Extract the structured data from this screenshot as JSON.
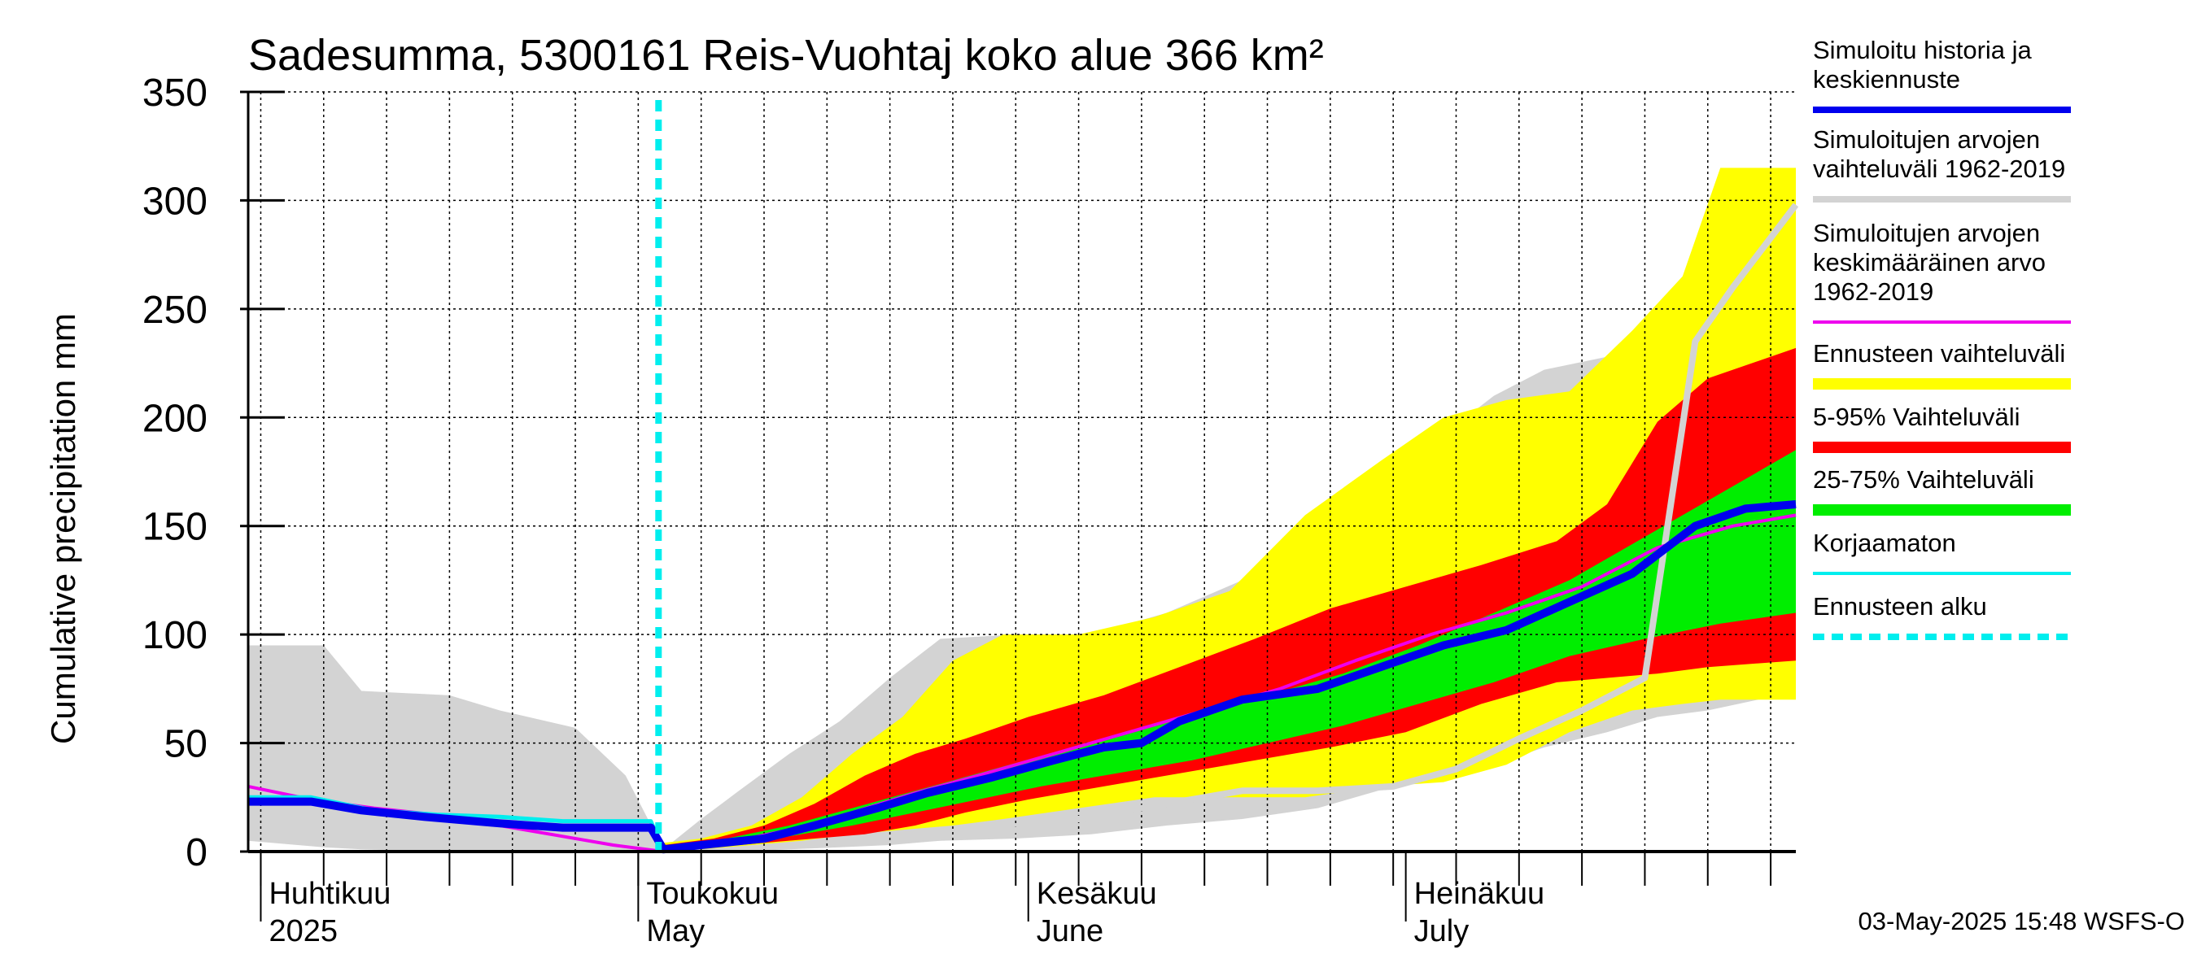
{
  "chart_data": {
    "type": "area",
    "title": "Sadesumma, 5300161 Reis-Vuohtaj koko alue 366 km²",
    "ylabel": "Cumulative precipitation   mm",
    "ylim": [
      0,
      350
    ],
    "yticks": [
      0,
      50,
      100,
      150,
      200,
      250,
      300,
      350
    ],
    "xlim": [
      "2025-03-31",
      "2025-08-01"
    ],
    "x_month_labels": [
      {
        "fi": "Huhtikuu",
        "en": "2025",
        "date": "2025-04-01"
      },
      {
        "fi": "Toukokuu",
        "en": "May",
        "date": "2025-05-01"
      },
      {
        "fi": "Kesäkuu",
        "en": "June",
        "date": "2025-06-01"
      },
      {
        "fi": "Heinäkuu",
        "en": "July",
        "date": "2025-07-01"
      }
    ],
    "forecast_start": "2025-05-03",
    "timestamp": "03-May-2025 15:48 WSFS-O",
    "grid": true,
    "legend_position": "right",
    "legend": [
      {
        "label": "Simuloitu historia ja keskiennuste",
        "color": "#0000ee"
      },
      {
        "label": "Simuloitujen arvojen vaihteluväli 1962-2019",
        "color": "#d3d3d3"
      },
      {
        "label": "Simuloitujen arvojen keskimääräinen arvo 1962-2019",
        "color": "#ee00ee"
      },
      {
        "label": "Ennusteen vaihteluväli",
        "color": "#ffff00"
      },
      {
        "label": "5-95% Vaihteluväli",
        "color": "#ff0000"
      },
      {
        "label": "25-75% Vaihteluväli",
        "color": "#00ee00"
      },
      {
        "label": "Korjaamaton",
        "color": "#00eeee"
      },
      {
        "label": "Ennusteen alku",
        "color": "#00eeee"
      }
    ],
    "bands": [
      {
        "name": "Simuloitujen arvojen vaihteluväli 1962-2019",
        "color": "#d3d3d3",
        "x": [
          "2025-03-31",
          "2025-04-06",
          "2025-04-09",
          "2025-04-16",
          "2025-04-20",
          "2025-04-26",
          "2025-04-30",
          "2025-05-03",
          "2025-05-06",
          "2025-05-09",
          "2025-05-13",
          "2025-05-17",
          "2025-05-21",
          "2025-05-25",
          "2025-05-31",
          "2025-06-06",
          "2025-06-12",
          "2025-06-18",
          "2025-06-24",
          "2025-06-30",
          "2025-07-04",
          "2025-07-08",
          "2025-07-12",
          "2025-07-17",
          "2025-07-21",
          "2025-07-25",
          "2025-07-29",
          "2025-08-01"
        ],
        "upper": [
          95,
          95,
          74,
          72,
          65,
          57,
          35,
          1,
          15,
          28,
          45,
          60,
          80,
          98,
          100,
          100,
          110,
          125,
          140,
          165,
          192,
          210,
          222,
          228,
          238,
          250,
          253,
          258
        ],
        "lower": [
          5,
          2,
          1,
          0,
          0,
          0,
          0,
          0,
          0,
          0,
          1,
          2,
          3,
          5,
          6,
          8,
          12,
          15,
          20,
          30,
          35,
          40,
          48,
          55,
          62,
          65,
          70,
          80
        ]
      },
      {
        "name": "Ennusteen vaihteluväli",
        "color": "#ffff00",
        "x": [
          "2025-05-03",
          "2025-05-06",
          "2025-05-10",
          "2025-05-14",
          "2025-05-18",
          "2025-05-22",
          "2025-05-26",
          "2025-05-30",
          "2025-06-05",
          "2025-06-11",
          "2025-06-17",
          "2025-06-23",
          "2025-06-29",
          "2025-07-04",
          "2025-07-09",
          "2025-07-14",
          "2025-07-19",
          "2025-07-23",
          "2025-07-26",
          "2025-08-01"
        ],
        "upper": [
          4,
          6,
          12,
          25,
          45,
          62,
          88,
          100,
          100,
          108,
          120,
          155,
          180,
          200,
          208,
          212,
          240,
          265,
          315,
          315
        ],
        "lower": [
          0,
          1,
          3,
          5,
          8,
          10,
          12,
          15,
          20,
          25,
          25,
          25,
          30,
          32,
          40,
          55,
          65,
          68,
          70,
          70
        ]
      },
      {
        "name": "5-95% Vaihteluväli",
        "color": "#ff0000",
        "x": [
          "2025-05-03",
          "2025-05-07",
          "2025-05-11",
          "2025-05-15",
          "2025-05-19",
          "2025-05-23",
          "2025-05-27",
          "2025-06-01",
          "2025-06-07",
          "2025-06-13",
          "2025-06-19",
          "2025-06-25",
          "2025-07-01",
          "2025-07-07",
          "2025-07-13",
          "2025-07-17",
          "2025-07-21",
          "2025-07-25",
          "2025-08-01"
        ],
        "upper": [
          3,
          6,
          12,
          22,
          35,
          45,
          52,
          62,
          72,
          85,
          98,
          112,
          122,
          132,
          143,
          160,
          198,
          218,
          232
        ],
        "lower": [
          0,
          2,
          4,
          6,
          8,
          12,
          18,
          24,
          30,
          36,
          42,
          48,
          55,
          68,
          78,
          80,
          82,
          85,
          88
        ]
      },
      {
        "name": "25-75% Vaihteluväli",
        "color": "#00ee00",
        "x": [
          "2025-05-03",
          "2025-05-08",
          "2025-05-13",
          "2025-05-18",
          "2025-05-23",
          "2025-05-28",
          "2025-06-02",
          "2025-06-08",
          "2025-06-14",
          "2025-06-20",
          "2025-06-26",
          "2025-07-02",
          "2025-07-08",
          "2025-07-14",
          "2025-07-20",
          "2025-07-26",
          "2025-08-01"
        ],
        "upper": [
          2,
          6,
          12,
          20,
          28,
          36,
          44,
          54,
          62,
          72,
          82,
          95,
          110,
          125,
          145,
          165,
          185
        ],
        "lower": [
          0,
          3,
          7,
          12,
          18,
          24,
          30,
          36,
          42,
          50,
          58,
          68,
          78,
          90,
          98,
          105,
          110
        ]
      }
    ],
    "series": [
      {
        "name": "Simuloitujen arvojen keskimääräinen arvo 1962-2019",
        "color": "#ee00ee",
        "x": [
          "2025-03-31",
          "2025-04-05",
          "2025-04-10",
          "2025-04-15",
          "2025-04-20",
          "2025-04-25",
          "2025-04-29",
          "2025-05-03",
          "2025-05-08",
          "2025-05-13",
          "2025-05-18",
          "2025-05-23",
          "2025-05-28",
          "2025-06-03",
          "2025-06-09",
          "2025-06-15",
          "2025-06-21",
          "2025-06-27",
          "2025-07-03",
          "2025-07-09",
          "2025-07-15",
          "2025-07-21",
          "2025-07-27",
          "2025-08-01"
        ],
        "y": [
          30,
          24,
          20,
          17,
          12,
          7,
          3,
          0,
          4,
          10,
          18,
          27,
          35,
          45,
          55,
          65,
          75,
          88,
          100,
          110,
          122,
          140,
          150,
          155
        ]
      },
      {
        "name": "Simuloitu historia ja keskiennuste",
        "color": "#0000ee",
        "x": [
          "2025-03-31",
          "2025-04-05",
          "2025-04-09",
          "2025-04-14",
          "2025-04-20",
          "2025-04-25",
          "2025-05-02",
          "2025-05-03",
          "2025-05-06",
          "2025-05-11",
          "2025-05-15",
          "2025-05-20",
          "2025-05-24",
          "2025-05-29",
          "2025-06-03",
          "2025-06-07",
          "2025-06-10",
          "2025-06-13",
          "2025-06-18",
          "2025-06-24",
          "2025-06-29",
          "2025-07-04",
          "2025-07-09",
          "2025-07-14",
          "2025-07-19",
          "2025-07-24",
          "2025-07-28",
          "2025-08-01"
        ],
        "y": [
          23,
          23,
          19,
          16,
          13,
          11,
          11,
          1,
          3,
          6,
          12,
          20,
          27,
          34,
          42,
          48,
          50,
          60,
          70,
          75,
          85,
          95,
          102,
          115,
          128,
          150,
          158,
          160
        ]
      },
      {
        "name": "Korjaamaton",
        "color": "#00eeee",
        "x": [
          "2025-03-31",
          "2025-04-05",
          "2025-04-10",
          "2025-04-15",
          "2025-04-20",
          "2025-04-25",
          "2025-05-02",
          "2025-05-03"
        ],
        "y": [
          25,
          25,
          19,
          17,
          16,
          14,
          14,
          1
        ]
      },
      {
        "name": "",
        "color": "#d3d3d3",
        "x": [
          "2025-05-29",
          "2025-06-05",
          "2025-06-12",
          "2025-06-18",
          "2025-06-24",
          "2025-06-30",
          "2025-07-05",
          "2025-07-10",
          "2025-07-15",
          "2025-07-20",
          "2025-07-24",
          "2025-07-27",
          "2025-08-01"
        ],
        "y": [
          8,
          15,
          22,
          28,
          28,
          30,
          38,
          52,
          65,
          80,
          235,
          260,
          298
        ]
      }
    ]
  }
}
